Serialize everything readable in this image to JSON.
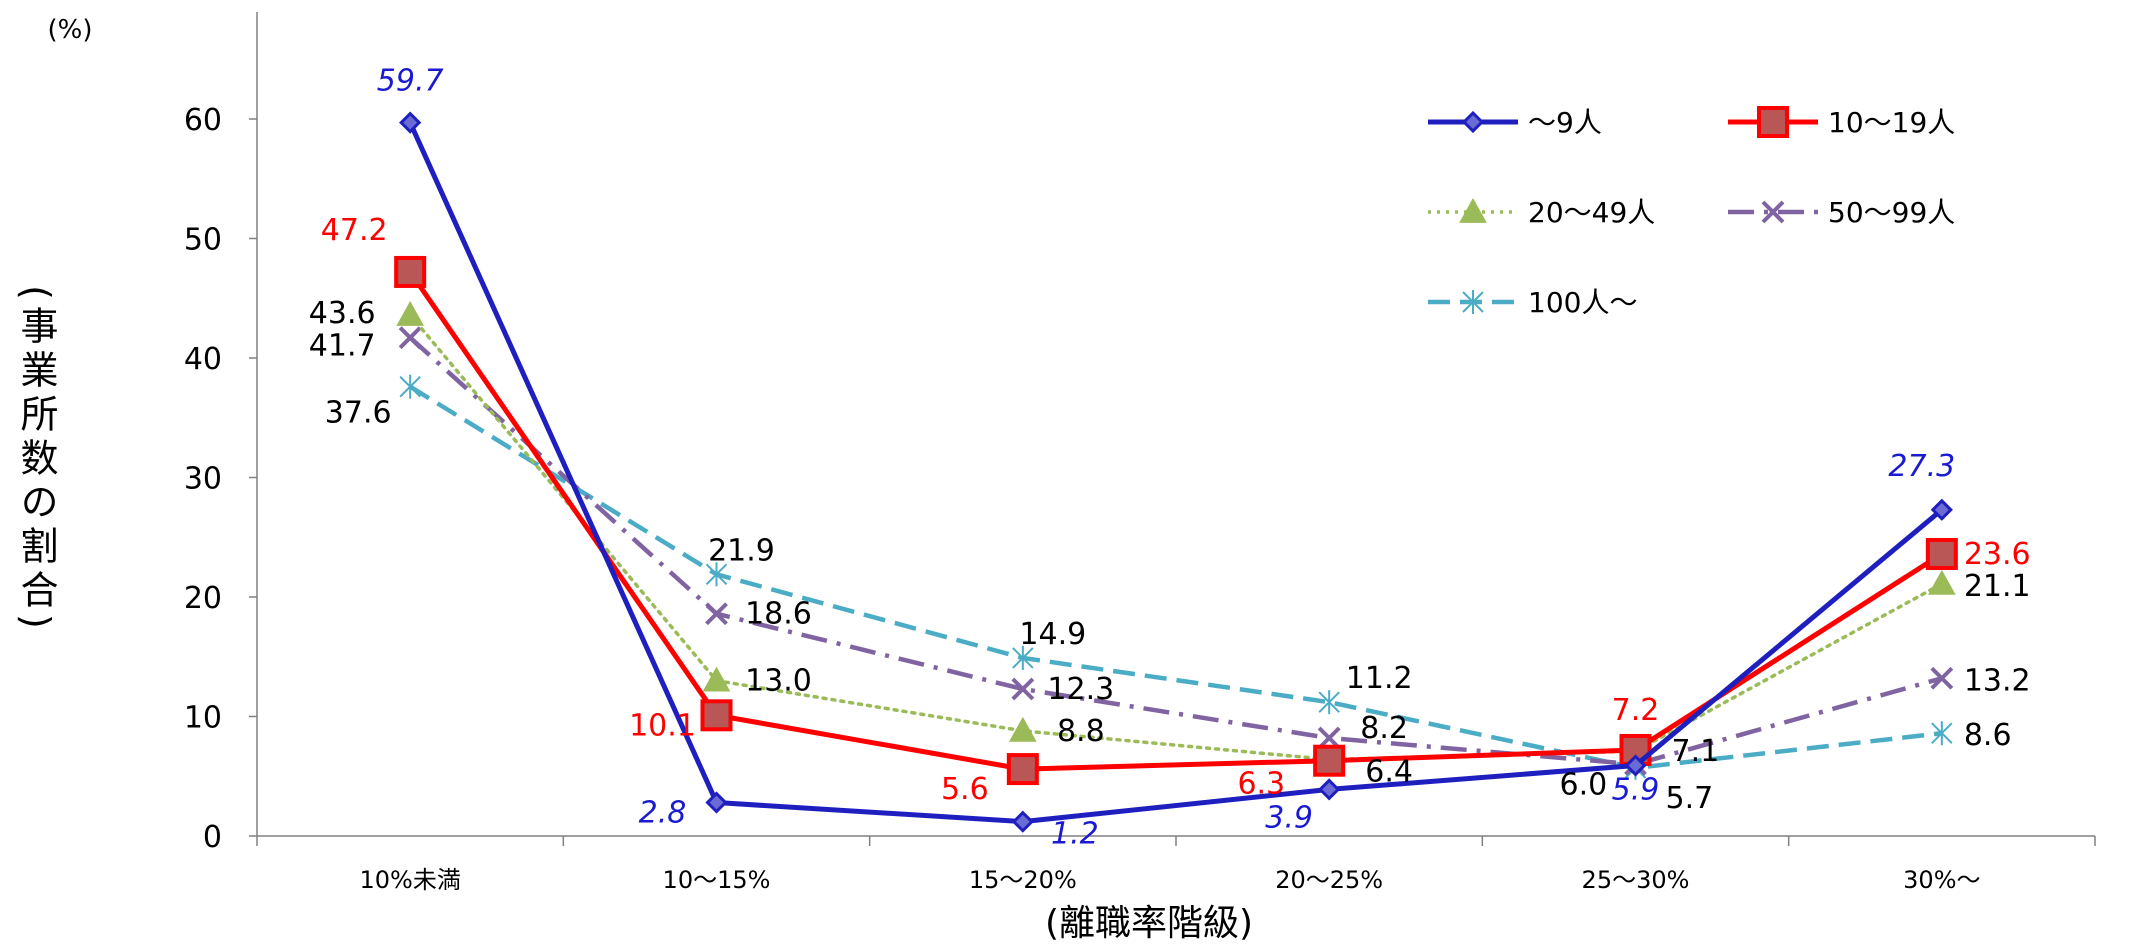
{
  "chart_data": {
    "type": "line",
    "title": "",
    "unit_label": "(%)",
    "ylabel": "(事業所数の割合)",
    "xlabel": "(離職率階級)",
    "categories": [
      "10%未満",
      "10〜15%",
      "15〜20%",
      "20〜25%",
      "25〜30%",
      "30%〜"
    ],
    "ylim": [
      0,
      60
    ],
    "yticks": [
      "0",
      "10",
      "20",
      "30",
      "40",
      "50",
      "60"
    ],
    "grid": false,
    "legend_position": "top-right",
    "series": [
      {
        "name": "〜9人",
        "values": [
          59.7,
          2.8,
          1.2,
          3.9,
          5.9,
          27.3
        ],
        "labels": [
          "59.7",
          "2.8",
          "1.2",
          "3.9",
          "5.9",
          "27.3"
        ],
        "color": "#1f1fbf",
        "marker": "diamond",
        "dash": "solid",
        "label_color": "#1a1ad0",
        "label_italic": true
      },
      {
        "name": "10〜19人",
        "values": [
          47.2,
          10.1,
          5.6,
          6.3,
          7.2,
          23.6
        ],
        "labels": [
          "47.2",
          "10.1",
          "5.6",
          "6.3",
          "7.2",
          "23.6"
        ],
        "color": "#ff0000",
        "marker": "square",
        "dash": "solid",
        "label_color": "#ff0000",
        "label_italic": false
      },
      {
        "name": "20〜49人",
        "values": [
          43.6,
          13.0,
          8.8,
          6.4,
          7.1,
          21.1
        ],
        "labels": [
          "43.6",
          "13.0",
          "8.8",
          "6.4",
          "7.1",
          "21.1"
        ],
        "color": "#9bbb59",
        "marker": "triangle",
        "dash": "dotted",
        "label_color": "#000000",
        "label_italic": false
      },
      {
        "name": "50〜99人",
        "values": [
          41.7,
          18.6,
          12.3,
          8.2,
          6.0,
          13.2
        ],
        "labels": [
          "41.7",
          "18.6",
          "12.3",
          "8.2",
          "6.0",
          "13.2"
        ],
        "color": "#8064a2",
        "marker": "x",
        "dash": "dashdot",
        "label_color": "#000000",
        "label_italic": false
      },
      {
        "name": "100人〜",
        "values": [
          37.6,
          21.9,
          14.9,
          11.2,
          5.7,
          8.6
        ],
        "labels": [
          "37.6",
          "21.9",
          "14.9",
          "11.2",
          "5.7",
          "8.6"
        ],
        "color": "#4bacc6",
        "marker": "asterisk",
        "dash": "dashed",
        "label_color": "#000000",
        "label_italic": false
      }
    ]
  }
}
